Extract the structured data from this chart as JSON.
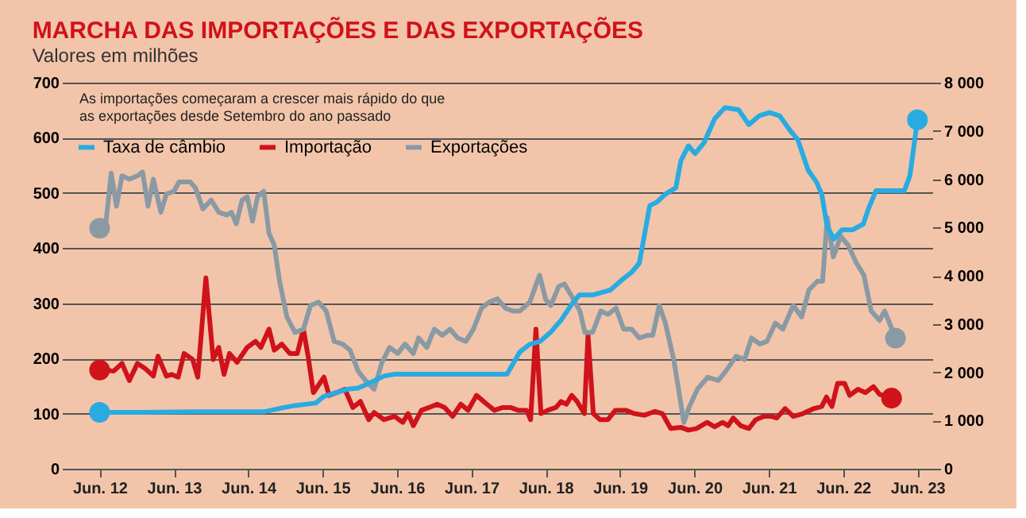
{
  "chart_data": {
    "type": "line",
    "title": "MARCHA DAS IMPORTAÇÕES E DAS EXPORTAÇÕES",
    "subtitle": "Valores em milhões",
    "annotations": [
      "As importações começaram a crescer mais rápido do que\nas exportações desde Setembro do ano passado"
    ],
    "xlim": [
      "2012-01-07",
      "2023-08-13"
    ],
    "xticks": [
      {
        "value": "2012-06-01",
        "label": "Jun. 12"
      },
      {
        "value": "2013-06-01",
        "label": "Jun. 13"
      },
      {
        "value": "2014-06-01",
        "label": "Jun. 14"
      },
      {
        "value": "2015-06-01",
        "label": "Jun. 15"
      },
      {
        "value": "2016-06-01",
        "label": "Jun. 16"
      },
      {
        "value": "2017-06-01",
        "label": "Jun. 17"
      },
      {
        "value": "2018-06-01",
        "label": "Jun. 18"
      },
      {
        "value": "2019-06-01",
        "label": "Jun. 19"
      },
      {
        "value": "2020-06-01",
        "label": "Jun. 20"
      },
      {
        "value": "2021-06-01",
        "label": "Jun. 21"
      },
      {
        "value": "2022-06-01",
        "label": "Jun. 22"
      },
      {
        "value": "2023-06-01",
        "label": "Jun. 23"
      }
    ],
    "ylim": [
      0,
      700
    ],
    "yticks": [
      0,
      100,
      200,
      300,
      400,
      500,
      600,
      700
    ],
    "y2lim": [
      0,
      8000
    ],
    "y2ticks": [
      0,
      {
        "value": 1000,
        "label": "1 000"
      },
      {
        "value": 2000,
        "label": "2 000"
      },
      {
        "value": 3000,
        "label": "3 000"
      },
      {
        "value": 4000,
        "label": "4 000"
      },
      {
        "value": 5000,
        "label": "5 000"
      },
      {
        "value": 6000,
        "label": "6 000"
      },
      {
        "value": 7000,
        "label": "7 000"
      },
      {
        "value": 8000,
        "label": "8 000"
      }
    ],
    "grid": "y",
    "legend": "top left",
    "line_style": "solid",
    "series": [
      {
        "name": "Taxa de câmbio",
        "color": "#29abe2",
        "axis": "y2",
        "x": [
          "2012-06-01",
          "2012-12-29",
          "2013-09-15",
          "2014-08-16",
          "2014-11-02",
          "2015-01-17",
          "2015-04-28",
          "2015-06-08",
          "2015-08-09",
          "2015-10-03",
          "2015-11-23",
          "2016-01-14",
          "2016-03-29",
          "2016-05-20",
          "2017-11-23",
          "2018-01-25",
          "2018-03-15",
          "2018-05-05",
          "2018-06-26",
          "2018-08-16",
          "2018-10-07",
          "2018-11-13",
          "2019-01-17",
          "2019-04-14",
          "2019-06-04",
          "2019-07-28",
          "2019-09-04",
          "2019-10-25",
          "2019-12-01",
          "2020-01-10",
          "2020-03-01",
          "2020-03-26",
          "2020-05-02",
          "2020-06-04",
          "2020-07-17",
          "2020-09-08",
          "2020-10-28",
          "2021-01-03",
          "2021-02-23",
          "2021-04-14",
          "2021-06-04",
          "2021-07-25",
          "2021-09-15",
          "2021-10-21",
          "2021-12-11",
          "2022-01-21",
          "2022-02-16",
          "2022-03-15",
          "2022-04-17",
          "2022-05-27",
          "2022-07-17",
          "2022-09-08",
          "2022-10-03",
          "2022-11-09",
          "2022-12-19",
          "2023-03-29",
          "2023-04-25",
          "2023-06-01"
        ],
        "values": [
          1170,
          1170,
          1180,
          1180,
          1250,
          1310,
          1360,
          1500,
          1580,
          1650,
          1670,
          1770,
          1920,
          1960,
          1960,
          2420,
          2580,
          2640,
          2830,
          3080,
          3410,
          3600,
          3600,
          3700,
          3890,
          4070,
          4260,
          5450,
          5530,
          5690,
          5820,
          6380,
          6690,
          6530,
          6750,
          7250,
          7480,
          7440,
          7130,
          7310,
          7380,
          7310,
          7000,
          6820,
          6190,
          5940,
          5690,
          5010,
          4760,
          4950,
          4950,
          5070,
          5380,
          5760,
          5760,
          5760,
          6070,
          7230
        ]
      },
      {
        "name": "Importação",
        "color": "#d0121b",
        "x": [
          "2012-06-01",
          "2012-06-29",
          "2012-08-09",
          "2012-09-19",
          "2012-10-25",
          "2012-12-04",
          "2013-01-10",
          "2013-02-20",
          "2013-03-15",
          "2013-04-25",
          "2013-05-20",
          "2013-06-22",
          "2013-07-21",
          "2013-09-01",
          "2013-09-26",
          "2013-11-05",
          "2013-12-11",
          "2014-01-07",
          "2014-02-02",
          "2014-03-01",
          "2014-04-07",
          "2014-05-27",
          "2014-07-07",
          "2014-08-02",
          "2014-09-11",
          "2014-10-07",
          "2014-11-13",
          "2014-12-22",
          "2015-01-28",
          "2015-02-27",
          "2015-03-22",
          "2015-04-17",
          "2015-06-08",
          "2015-07-03",
          "2015-08-09",
          "2015-09-19",
          "2015-10-28",
          "2015-12-04",
          "2016-01-14",
          "2016-02-09",
          "2016-03-29",
          "2016-05-20",
          "2016-06-29",
          "2016-07-25",
          "2016-08-20",
          "2016-09-29",
          "2016-11-05",
          "2016-12-15",
          "2017-01-21",
          "2017-03-01",
          "2017-04-10",
          "2017-05-16",
          "2017-06-26",
          "2017-08-16",
          "2017-09-22",
          "2017-11-02",
          "2017-12-11",
          "2018-01-17",
          "2018-02-27",
          "2018-03-19",
          "2018-04-14",
          "2018-05-09",
          "2018-06-11",
          "2018-07-21",
          "2018-08-16",
          "2018-09-11",
          "2018-10-07",
          "2018-11-02",
          "2018-12-08",
          "2018-12-26",
          "2019-01-21",
          "2019-02-23",
          "2019-04-03",
          "2019-05-09",
          "2019-06-29",
          "2019-08-09",
          "2019-09-29",
          "2019-11-20",
          "2019-12-26",
          "2020-02-05",
          "2020-03-26",
          "2020-05-02",
          "2020-06-11",
          "2020-08-02",
          "2020-09-08",
          "2020-10-17",
          "2020-11-13",
          "2020-12-08",
          "2021-01-14",
          "2021-02-23",
          "2021-03-29",
          "2021-05-09",
          "2021-06-15",
          "2021-07-10",
          "2021-08-20",
          "2021-09-29",
          "2021-11-16",
          "2022-01-07",
          "2022-02-16",
          "2022-03-11",
          "2022-04-07",
          "2022-05-05",
          "2022-06-08",
          "2022-07-03",
          "2022-08-13",
          "2022-09-19",
          "2022-10-28",
          "2022-11-27",
          "2023-01-25"
        ],
        "values": [
          179,
          179,
          177,
          191,
          160,
          191,
          182,
          168,
          204,
          168,
          171,
          166,
          209,
          198,
          166,
          346,
          198,
          220,
          171,
          209,
          193,
          220,
          231,
          220,
          253,
          215,
          226,
          209,
          209,
          253,
          204,
          138,
          166,
          133,
          138,
          144,
          111,
          122,
          89,
          102,
          89,
          95,
          84,
          100,
          78,
          106,
          111,
          117,
          111,
          95,
          117,
          106,
          133,
          117,
          106,
          111,
          111,
          106,
          106,
          89,
          253,
          100,
          106,
          111,
          122,
          117,
          133,
          122,
          100,
          242,
          100,
          89,
          89,
          106,
          106,
          100,
          97,
          104,
          100,
          73,
          75,
          70,
          73,
          84,
          76,
          84,
          78,
          92,
          78,
          73,
          89,
          95,
          95,
          92,
          109,
          95,
          100,
          109,
          113,
          130,
          113,
          155,
          155,
          133,
          144,
          138,
          149,
          135,
          128
        ]
      },
      {
        "name": "Exportações",
        "color": "#8a9aa4",
        "x": [
          "2012-06-01",
          "2012-06-29",
          "2012-07-28",
          "2012-08-23",
          "2012-09-19",
          "2012-10-25",
          "2012-12-04",
          "2012-12-29",
          "2013-01-25",
          "2013-02-20",
          "2013-03-29",
          "2013-04-25",
          "2013-06-01",
          "2013-06-26",
          "2013-08-20",
          "2013-09-15",
          "2013-10-21",
          "2013-12-01",
          "2014-01-07",
          "2014-02-16",
          "2014-03-11",
          "2014-04-03",
          "2014-05-02",
          "2014-05-27",
          "2014-06-22",
          "2014-07-17",
          "2014-08-16",
          "2014-09-11",
          "2014-10-07",
          "2014-11-02",
          "2014-12-08",
          "2015-01-17",
          "2015-02-27",
          "2015-04-03",
          "2015-05-13",
          "2015-06-19",
          "2015-07-28",
          "2015-09-08",
          "2015-10-14",
          "2015-11-23",
          "2015-12-29",
          "2016-02-09",
          "2016-03-19",
          "2016-04-25",
          "2016-06-04",
          "2016-07-10",
          "2016-08-20",
          "2016-09-15",
          "2016-10-25",
          "2016-12-01",
          "2017-01-10",
          "2017-02-16",
          "2017-03-26",
          "2017-05-05",
          "2017-06-11",
          "2017-07-21",
          "2017-08-27",
          "2017-10-07",
          "2017-11-16",
          "2017-12-22",
          "2018-01-25",
          "2018-03-15",
          "2018-05-02",
          "2018-06-01",
          "2018-06-26",
          "2018-08-05",
          "2018-09-01",
          "2018-10-07",
          "2018-11-16",
          "2018-12-11",
          "2019-01-17",
          "2019-02-27",
          "2019-04-03",
          "2019-05-13",
          "2019-06-19",
          "2019-07-28",
          "2019-09-04",
          "2019-10-14",
          "2019-11-09",
          "2019-12-11",
          "2020-01-10",
          "2020-02-20",
          "2020-04-10",
          "2020-05-05",
          "2020-06-15",
          "2020-08-05",
          "2020-09-26",
          "2020-11-02",
          "2020-12-22",
          "2021-02-02",
          "2021-03-08",
          "2021-04-17",
          "2021-05-23",
          "2021-07-03",
          "2021-08-09",
          "2021-09-29",
          "2021-11-09",
          "2021-12-15",
          "2022-01-25",
          "2022-02-20",
          "2022-03-15",
          "2022-04-14",
          "2022-05-20",
          "2022-06-26",
          "2022-08-05",
          "2022-09-11",
          "2022-10-17",
          "2022-11-27",
          "2022-12-22",
          "2023-02-13"
        ],
        "values": [
          436,
          436,
          536,
          476,
          531,
          525,
          531,
          538,
          476,
          525,
          465,
          498,
          503,
          520,
          520,
          509,
          471,
          487,
          465,
          460,
          465,
          444,
          487,
          493,
          449,
          493,
          503,
          427,
          405,
          340,
          275,
          247,
          253,
          296,
          302,
          286,
          231,
          226,
          215,
          177,
          160,
          144,
          193,
          220,
          209,
          226,
          209,
          237,
          220,
          253,
          242,
          253,
          237,
          231,
          253,
          291,
          302,
          308,
          291,
          286,
          286,
          302,
          351,
          307,
          296,
          331,
          335,
          313,
          286,
          247,
          247,
          286,
          280,
          291,
          253,
          253,
          237,
          242,
          242,
          296,
          264,
          198,
          84,
          111,
          144,
          166,
          160,
          177,
          204,
          198,
          237,
          226,
          231,
          264,
          253,
          296,
          275,
          324,
          340,
          340,
          455,
          384,
          422,
          405,
          373,
          351,
          286,
          269,
          286,
          237
        ]
      }
    ]
  }
}
